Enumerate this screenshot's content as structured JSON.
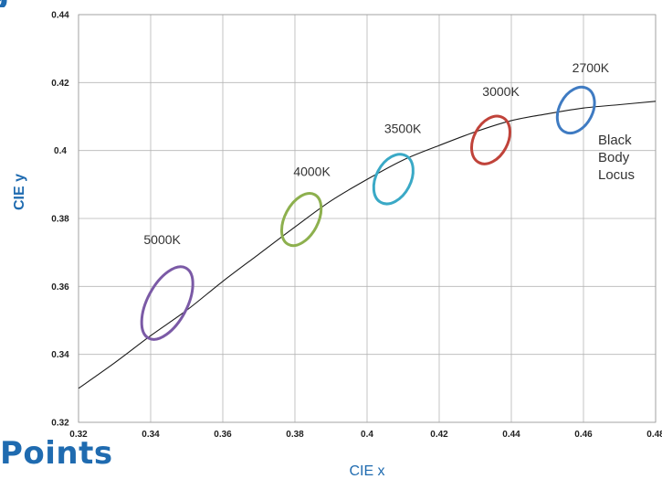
{
  "chart_data": {
    "type": "scatter",
    "title": "",
    "xlabel": "CIE x",
    "ylabel": "CIE y",
    "xlim": [
      0.32,
      0.48
    ],
    "ylim": [
      0.32,
      0.44
    ],
    "x_ticks": [
      "0.32",
      "0.34",
      "0.36",
      "0.38",
      "0.4",
      "0.42",
      "0.44",
      "0.46",
      "0.48"
    ],
    "y_ticks": [
      "0.32",
      "0.34",
      "0.36",
      "0.38",
      "0.4",
      "0.42",
      "0.44"
    ],
    "grid": true,
    "curve": {
      "name": "Black Body Locus",
      "label_lines": [
        "Black",
        "Body",
        "Locus"
      ],
      "points": [
        [
          0.32,
          0.33
        ],
        [
          0.33,
          0.3375
        ],
        [
          0.34,
          0.3455
        ],
        [
          0.35,
          0.353
        ],
        [
          0.36,
          0.3615
        ],
        [
          0.37,
          0.3695
        ],
        [
          0.38,
          0.3775
        ],
        [
          0.39,
          0.3852
        ],
        [
          0.4,
          0.3915
        ],
        [
          0.41,
          0.3972
        ],
        [
          0.42,
          0.4015
        ],
        [
          0.43,
          0.4055
        ],
        [
          0.44,
          0.4088
        ],
        [
          0.45,
          0.4108
        ],
        [
          0.46,
          0.4125
        ],
        [
          0.47,
          0.4135
        ],
        [
          0.48,
          0.4145
        ]
      ]
    },
    "ellipses": [
      {
        "label": "5000K",
        "cx": 0.3446,
        "cy": 0.3551,
        "color": "#7b5aa6",
        "rx": 0.0055,
        "ry": 0.0117,
        "label_x": 0.3432,
        "label_y": 0.3725
      },
      {
        "label": "4000K",
        "cx": 0.3818,
        "cy": 0.3797,
        "color": "#8db04e",
        "rx": 0.0046,
        "ry": 0.0083,
        "label_x": 0.3847,
        "label_y": 0.3925
      },
      {
        "label": "3500K",
        "cx": 0.4073,
        "cy": 0.3916,
        "color": "#3aa9c6",
        "rx": 0.0048,
        "ry": 0.0078,
        "label_x": 0.4099,
        "label_y": 0.4052
      },
      {
        "label": "3000K",
        "cx": 0.4343,
        "cy": 0.4031,
        "color": "#c0433a",
        "rx": 0.0047,
        "ry": 0.0075,
        "label_x": 0.4371,
        "label_y": 0.416
      },
      {
        "label": "2700K",
        "cx": 0.4579,
        "cy": 0.4119,
        "color": "#3f7bc2",
        "rx": 0.0046,
        "ry": 0.0072,
        "label_x": 0.462,
        "label_y": 0.423
      }
    ],
    "accent_color": "#1f6bb0"
  },
  "fragments": {
    "bottom_title": "Points"
  }
}
